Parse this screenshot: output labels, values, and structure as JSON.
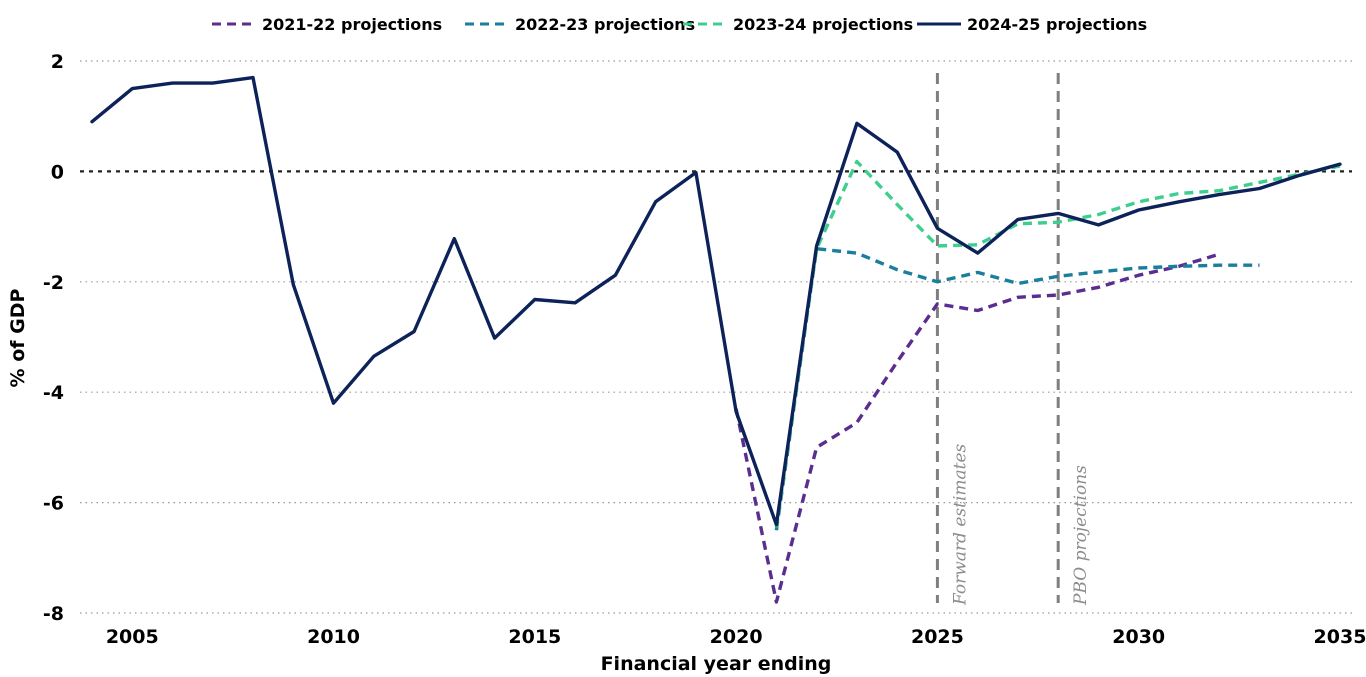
{
  "chart_data": {
    "type": "line",
    "xlabel": "Financial year ending",
    "ylabel": "% of GDP",
    "xlim": [
      2004,
      2035
    ],
    "ylim": [
      -8,
      2
    ],
    "x_ticks": [
      2005,
      2010,
      2015,
      2020,
      2025,
      2030,
      2035
    ],
    "y_ticks": [
      2,
      0,
      -2,
      -4,
      -6,
      -8
    ],
    "grid": "horizontal dotted",
    "legend_position": "top-center",
    "series": [
      {
        "name": "2021-22 projections",
        "color": "#5b2d8e",
        "style": "dashed",
        "x": [
          2020,
          2021,
          2022,
          2023,
          2024,
          2025,
          2026,
          2027,
          2028,
          2029,
          2030,
          2031,
          2032
        ],
        "values": [
          -4.3,
          -7.8,
          -5.0,
          -4.55,
          -3.45,
          -2.4,
          -2.52,
          -2.28,
          -2.24,
          -2.1,
          -1.88,
          -1.72,
          -1.5
        ]
      },
      {
        "name": "2022-23 projections",
        "color": "#1a7f9c",
        "style": "dashed",
        "x": [
          2021,
          2022,
          2023,
          2024,
          2025,
          2026,
          2027,
          2028,
          2029,
          2030,
          2031,
          2032,
          2033
        ],
        "values": [
          -6.5,
          -1.4,
          -1.48,
          -1.78,
          -2.0,
          -1.83,
          -2.03,
          -1.9,
          -1.82,
          -1.75,
          -1.72,
          -1.7,
          -1.7
        ]
      },
      {
        "name": "2023-24 projections",
        "color": "#3ecf8e",
        "style": "dashed",
        "x": [
          2021,
          2022,
          2023,
          2024,
          2025,
          2026,
          2027,
          2028,
          2029,
          2030,
          2031,
          2032,
          2033,
          2034,
          2035
        ],
        "values": [
          -6.45,
          -1.4,
          0.18,
          -0.6,
          -1.35,
          -1.33,
          -0.95,
          -0.92,
          -0.78,
          -0.55,
          -0.4,
          -0.35,
          -0.2,
          -0.05,
          0.1
        ]
      },
      {
        "name": "2024-25 projections",
        "color": "#0d2259",
        "style": "solid",
        "x": [
          2004,
          2005,
          2006,
          2007,
          2008,
          2009,
          2010,
          2011,
          2012,
          2013,
          2014,
          2015,
          2016,
          2017,
          2018,
          2019,
          2020,
          2021,
          2022,
          2023,
          2024,
          2025,
          2026,
          2027,
          2028,
          2029,
          2030,
          2031,
          2032,
          2033,
          2034,
          2035
        ],
        "values": [
          0.9,
          1.5,
          1.6,
          1.6,
          1.7,
          -2.05,
          -4.2,
          -3.35,
          -2.9,
          -1.22,
          -3.02,
          -2.32,
          -2.38,
          -1.88,
          -0.55,
          -0.02,
          -4.35,
          -6.4,
          -1.35,
          0.87,
          0.35,
          -1.03,
          -1.48,
          -0.87,
          -0.76,
          -0.97,
          -0.7,
          -0.55,
          -0.42,
          -0.31,
          -0.07,
          0.13
        ]
      }
    ],
    "reference_lines": [
      {
        "x": 2025,
        "label": "Forward estimates"
      },
      {
        "x": 2028,
        "label": "PBO projections"
      }
    ]
  }
}
